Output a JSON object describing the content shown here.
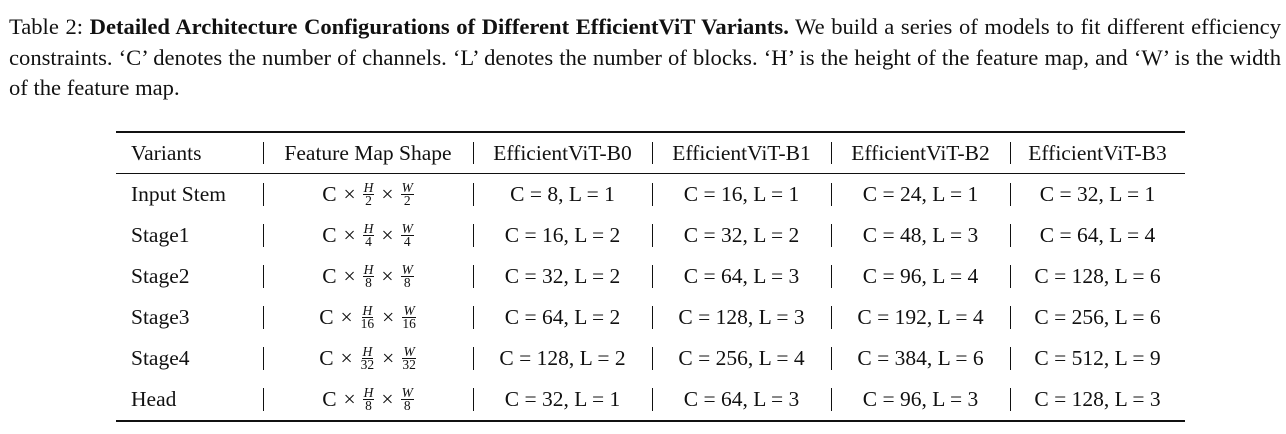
{
  "caption": {
    "label": "Table 2: ",
    "title": "Detailed Architecture Configurations of Different EfficientViT Variants.",
    "body": " We build a series of models to fit different efficiency constraints. ‘C’ denotes the number of channels. ‘L’ denotes the number of blocks. ‘H’ is the height of the feature map, and ‘W’ is the width of the feature map."
  },
  "table": {
    "headers": [
      "Variants",
      "Feature Map Shape",
      "EfficientViT-B0",
      "EfficientViT-B1",
      "EfficientViT-B2",
      "EfficientViT-B3"
    ],
    "rows": [
      {
        "variant": "Input Stem",
        "shape": {
          "c": "C",
          "times": "×",
          "h_num": "H",
          "h_den": "2",
          "w_num": "W",
          "w_den": "2"
        },
        "cells": [
          "C = 8, L = 1",
          "C = 16, L = 1",
          "C = 24, L = 1",
          "C = 32, L = 1"
        ]
      },
      {
        "variant": "Stage1",
        "shape": {
          "c": "C",
          "times": "×",
          "h_num": "H",
          "h_den": "4",
          "w_num": "W",
          "w_den": "4"
        },
        "cells": [
          "C = 16, L = 2",
          "C = 32, L = 2",
          "C = 48, L = 3",
          "C = 64, L = 4"
        ]
      },
      {
        "variant": "Stage2",
        "shape": {
          "c": "C",
          "times": "×",
          "h_num": "H",
          "h_den": "8",
          "w_num": "W",
          "w_den": "8"
        },
        "cells": [
          "C = 32, L = 2",
          "C = 64, L = 3",
          "C = 96, L = 4",
          "C = 128, L = 6"
        ]
      },
      {
        "variant": "Stage3",
        "shape": {
          "c": "C",
          "times": "×",
          "h_num": "H",
          "h_den": "16",
          "w_num": "W",
          "w_den": "16"
        },
        "cells": [
          "C = 64, L = 2",
          "C = 128, L = 3",
          "C = 192, L = 4",
          "C = 256, L = 6"
        ]
      },
      {
        "variant": "Stage4",
        "shape": {
          "c": "C",
          "times": "×",
          "h_num": "H",
          "h_den": "32",
          "w_num": "W",
          "w_den": "32"
        },
        "cells": [
          "C = 128, L = 2",
          "C = 256, L = 4",
          "C = 384, L = 6",
          "C = 512, L = 9"
        ]
      },
      {
        "variant": "Head",
        "shape": {
          "c": "C",
          "times": "×",
          "h_num": "H",
          "h_den": "8",
          "w_num": "W",
          "w_den": "8"
        },
        "cells": [
          "C = 32, L = 1",
          "C = 64, L = 3",
          "C = 96, L = 3",
          "C = 128, L = 3"
        ]
      }
    ]
  }
}
